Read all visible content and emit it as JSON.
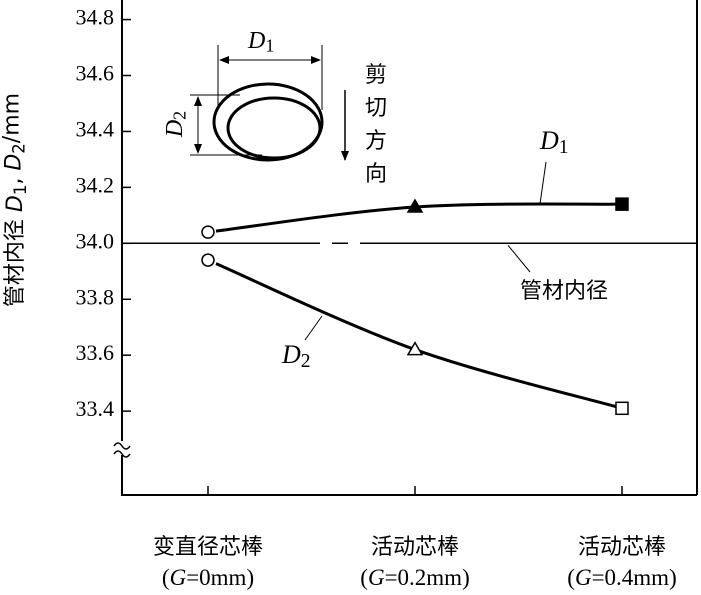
{
  "chart_data": {
    "type": "line",
    "y_label": "管材内径 D1, D2/mm",
    "categories": [
      "变直径芯棒",
      "活动芯棒",
      "活动芯棒"
    ],
    "category_notes": [
      "(G=0mm)",
      "(G=0.2mm)",
      "(G=0.4mm)"
    ],
    "series": [
      {
        "name": "D1",
        "color": "#000000",
        "markers": [
          "open-circle",
          "filled-triangle",
          "filled-square"
        ],
        "values": [
          34.04,
          34.13,
          34.14
        ]
      },
      {
        "name": "D2",
        "color": "#000000",
        "markers": [
          "open-circle",
          "open-triangle",
          "open-square"
        ],
        "values": [
          33.94,
          33.62,
          33.41
        ]
      }
    ],
    "reference_line": {
      "value": 34.0,
      "label": "管材内径"
    },
    "ylim": [
      33.1,
      34.87
    ],
    "yticks": [
      {
        "value": 33.4,
        "label": "33.4"
      },
      {
        "value": 33.6,
        "label": "33.6"
      },
      {
        "value": 33.8,
        "label": "33.8"
      },
      {
        "value": 34.0,
        "label": "34.0"
      },
      {
        "value": 34.2,
        "label": "34.2"
      },
      {
        "value": 34.4,
        "label": "34.4"
      },
      {
        "value": 34.6,
        "label": "34.6"
      },
      {
        "value": 34.8,
        "label": "34.8"
      }
    ],
    "inset": {
      "width_label": "D1",
      "height_label": "D2",
      "direction_label": "剪切方向"
    }
  }
}
